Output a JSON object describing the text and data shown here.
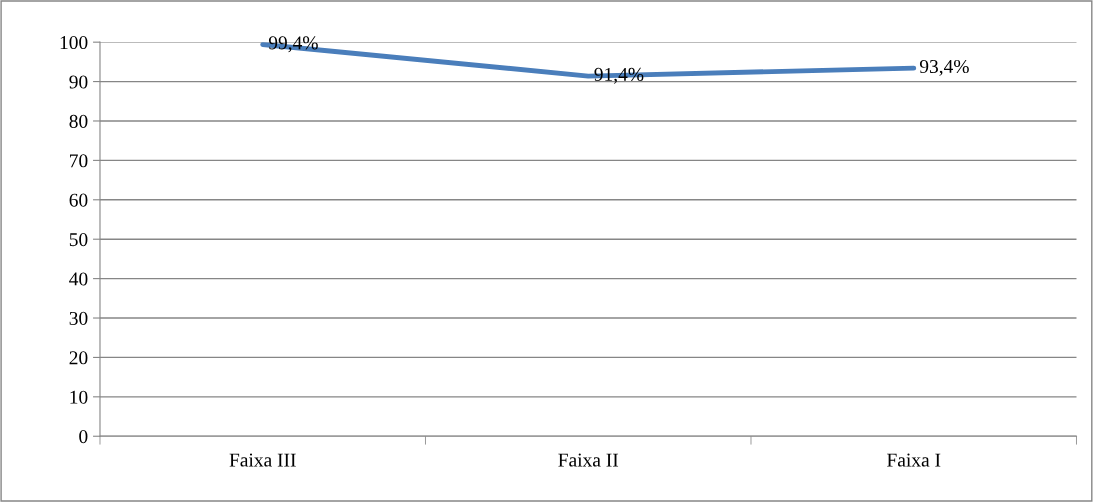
{
  "chart_data": {
    "type": "line",
    "categories": [
      "Faixa III",
      "Faixa II",
      "Faixa I"
    ],
    "series": [
      {
        "color": "#4a7ebb",
        "values": [
          99.4,
          91.4,
          93.4
        ],
        "value_labels": [
          "99,4%",
          "91,4%",
          "93,4%"
        ]
      }
    ],
    "ylim": [
      0,
      100
    ],
    "yticks": [
      0,
      10,
      20,
      30,
      40,
      50,
      60,
      70,
      80,
      90,
      100
    ],
    "grid": "y",
    "marker": "none",
    "line_style": "solid"
  }
}
